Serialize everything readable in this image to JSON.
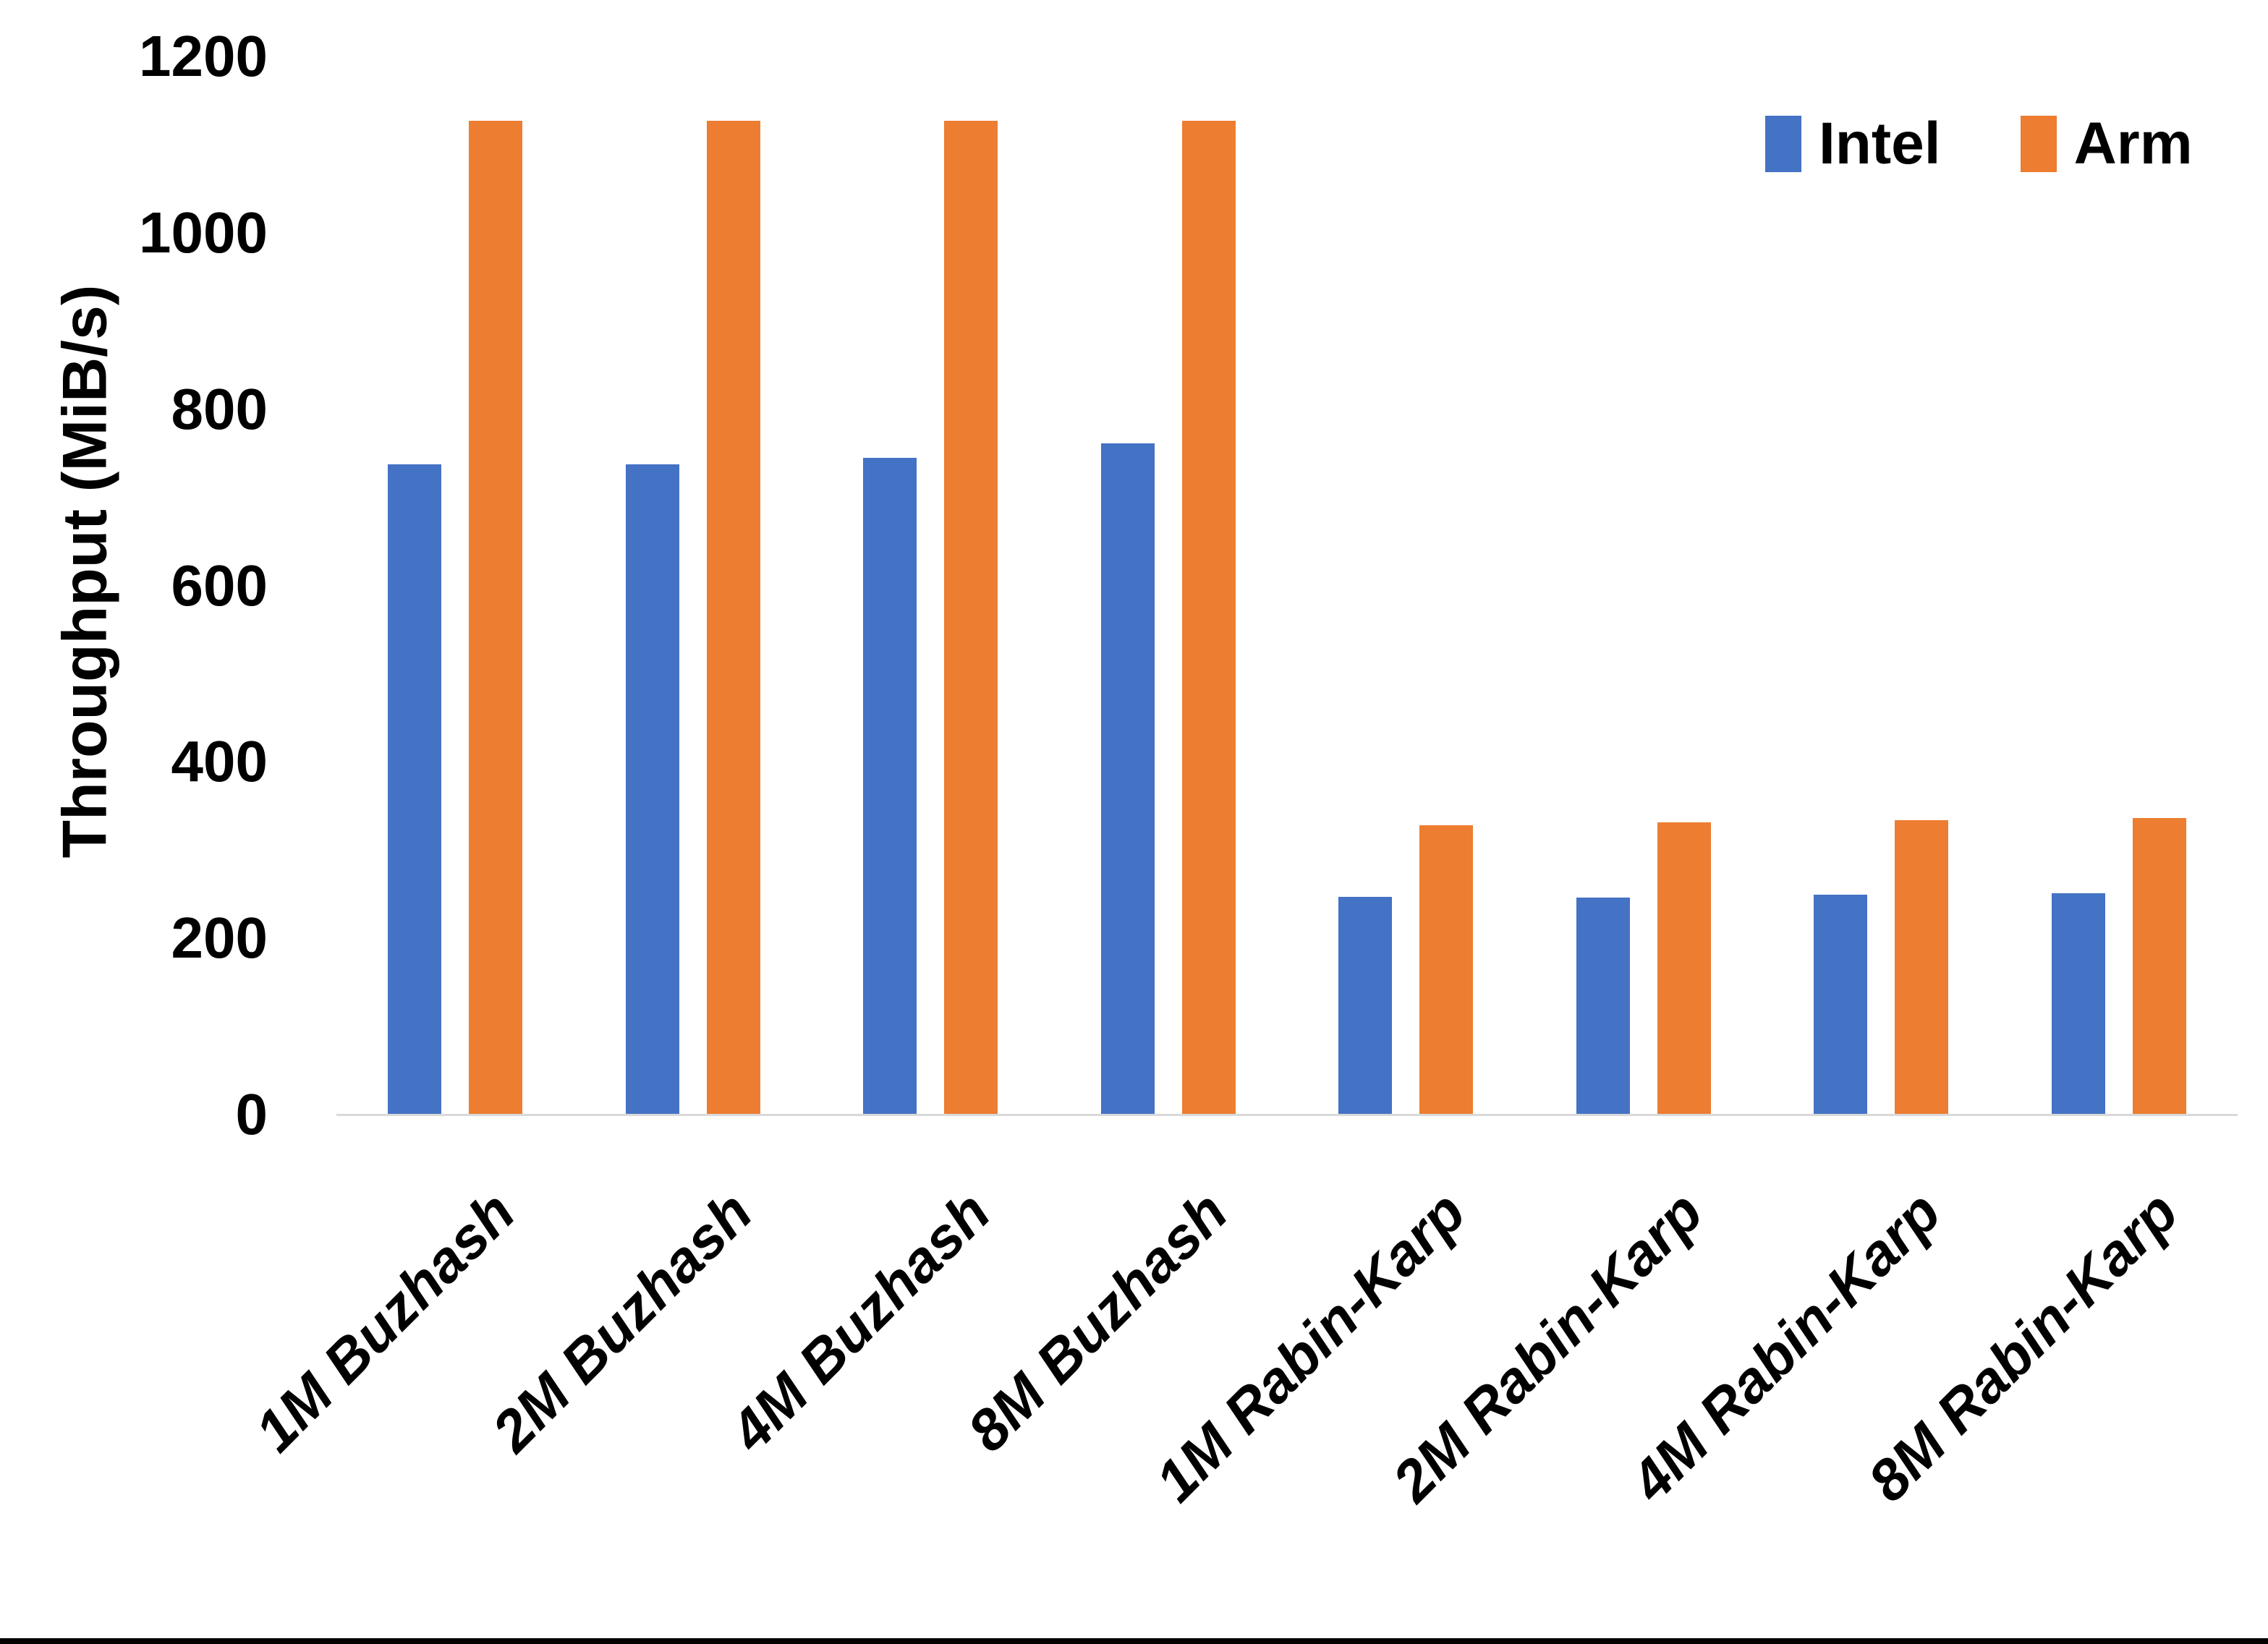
{
  "chart_data": {
    "type": "bar",
    "categories": [
      "1M Buzhash",
      "2M Buzhash",
      "4M Buzhash",
      "8M Buzhash",
      "1M Rabin-Karp",
      "2M Rabin-Karp",
      "4M Rabin-Karp",
      "8M Rabin-Karp"
    ],
    "series": [
      {
        "name": "Intel",
        "color": "#4472C4",
        "values": [
          737,
          737,
          745,
          761,
          247,
          246,
          249,
          251
        ]
      },
      {
        "name": "Arm",
        "color": "#ED7D31",
        "values": [
          1127,
          1127,
          1127,
          1127,
          328,
          331,
          334,
          336
        ]
      }
    ],
    "title": "",
    "xlabel": "",
    "ylabel": "Throughput (MiB/s)",
    "ylim": [
      0,
      1200
    ],
    "yticks": [
      0,
      200,
      400,
      600,
      800,
      1000,
      1200
    ],
    "gridlines": false,
    "legend_position": "top-right"
  },
  "colors": {
    "axis_line": "#D9D9D9",
    "text": "#000000",
    "background": "#FFFFFF",
    "bottom_border": "#000000"
  }
}
